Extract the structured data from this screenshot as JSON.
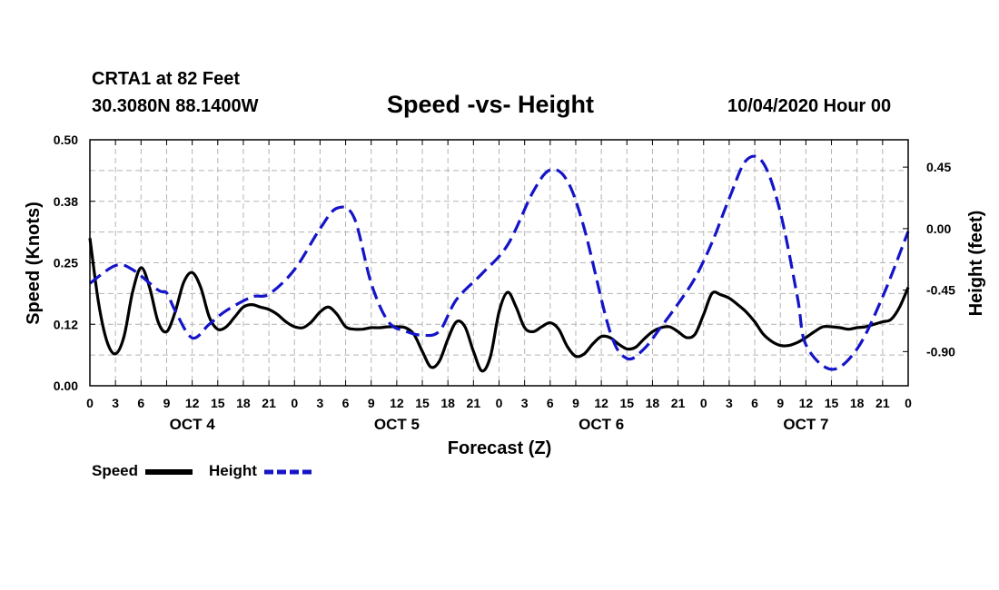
{
  "header": {
    "station": "CRTA1 at 82 Feet",
    "coords": "30.3080N 88.1400W",
    "title": "Speed -vs- Height",
    "runtime": "10/04/2020 Hour 00"
  },
  "legend": {
    "speed_label": "Speed",
    "height_label": "Height"
  },
  "colors": {
    "speed": "#000000",
    "height": "#1414c8",
    "grid": "#b4b4b4"
  },
  "chart_data": {
    "type": "line",
    "title": "Speed -vs- Height",
    "xlabel": "Forecast (Z)",
    "ylabel": "Speed (Knots)",
    "y2label": "Height (feet)",
    "grid": true,
    "xlim": [
      0,
      96
    ],
    "ylim": [
      0,
      0.5
    ],
    "y2lim": [
      -1.15,
      0.65
    ],
    "x_ticks": [
      0,
      3,
      6,
      9,
      12,
      15,
      18,
      21,
      24,
      27,
      30,
      33,
      36,
      39,
      42,
      45,
      48,
      51,
      54,
      57,
      60,
      63,
      66,
      69,
      72,
      75,
      78,
      81,
      84,
      87,
      90,
      93,
      96
    ],
    "x_tick_labels": [
      "0",
      "3",
      "6",
      "9",
      "12",
      "15",
      "18",
      "21",
      "0",
      "3",
      "6",
      "9",
      "12",
      "15",
      "18",
      "21",
      "0",
      "3",
      "6",
      "9",
      "12",
      "15",
      "18",
      "21",
      "0",
      "3",
      "6",
      "9",
      "12",
      "15",
      "18",
      "21",
      "0"
    ],
    "day_labels": [
      {
        "x": 12,
        "label": "OCT 4"
      },
      {
        "x": 36,
        "label": "OCT 5"
      },
      {
        "x": 60,
        "label": "OCT 6"
      },
      {
        "x": 84,
        "label": "OCT 7"
      }
    ],
    "y_ticks": [
      0.0,
      0.125,
      0.25,
      0.375,
      0.5
    ],
    "y_tick_labels": [
      "0.00",
      "0.12",
      "0.25",
      "0.38",
      "0.50"
    ],
    "y2_ticks": [
      0.45,
      0.0,
      -0.45,
      -0.9
    ],
    "y2_tick_labels": [
      "0.45",
      "0.00",
      "-0.45",
      "-0.90"
    ],
    "series": [
      {
        "name": "Speed",
        "axis": "left",
        "style": "solid",
        "x": [
          0,
          1,
          2,
          3,
          4,
          5,
          6,
          7,
          8,
          9,
          10,
          11,
          12,
          13,
          14,
          15,
          16,
          17,
          18,
          19,
          20,
          21,
          22,
          23,
          24,
          25,
          26,
          27,
          28,
          29,
          30,
          31,
          32,
          33,
          34,
          35,
          36,
          37,
          38,
          39,
          40,
          41,
          42,
          43,
          44,
          45,
          46,
          47,
          48,
          49,
          50,
          51,
          52,
          53,
          54,
          55,
          56,
          57,
          58,
          59,
          60,
          61,
          62,
          63,
          64,
          65,
          66,
          67,
          68,
          69,
          70,
          71,
          72,
          73,
          74,
          75,
          76,
          77,
          78,
          79,
          80,
          81,
          82,
          83,
          84,
          85,
          86,
          87,
          88,
          89,
          90,
          91,
          92,
          93,
          94,
          95,
          96
        ],
        "values": [
          0.3,
          0.17,
          0.09,
          0.065,
          0.1,
          0.19,
          0.24,
          0.2,
          0.13,
          0.11,
          0.15,
          0.21,
          0.23,
          0.2,
          0.14,
          0.115,
          0.12,
          0.14,
          0.16,
          0.165,
          0.16,
          0.155,
          0.145,
          0.13,
          0.12,
          0.118,
          0.13,
          0.15,
          0.16,
          0.145,
          0.12,
          0.115,
          0.115,
          0.118,
          0.118,
          0.12,
          0.12,
          0.118,
          0.105,
          0.07,
          0.038,
          0.05,
          0.095,
          0.13,
          0.12,
          0.07,
          0.03,
          0.06,
          0.15,
          0.19,
          0.16,
          0.118,
          0.11,
          0.12,
          0.128,
          0.115,
          0.08,
          0.06,
          0.065,
          0.085,
          0.1,
          0.098,
          0.085,
          0.075,
          0.078,
          0.095,
          0.11,
          0.118,
          0.12,
          0.11,
          0.098,
          0.105,
          0.145,
          0.188,
          0.185,
          0.178,
          0.165,
          0.15,
          0.13,
          0.105,
          0.09,
          0.082,
          0.082,
          0.088,
          0.098,
          0.11,
          0.12,
          0.12,
          0.118,
          0.115,
          0.118,
          0.12,
          0.125,
          0.13,
          0.135,
          0.16,
          0.2
        ]
      },
      {
        "name": "Height",
        "axis": "right",
        "style": "dashed",
        "x": [
          0,
          3,
          5,
          8,
          9,
          10,
          12,
          14,
          16,
          19,
          21,
          24,
          27,
          29,
          31,
          33,
          35,
          37,
          39,
          41,
          43,
          46,
          49,
          52,
          54,
          56,
          58,
          61,
          63,
          65,
          67,
          69,
          71,
          73,
          75,
          77,
          79,
          81,
          83,
          84,
          87,
          90,
          93,
          96
        ],
        "values": [
          -0.4,
          -0.27,
          -0.3,
          -0.45,
          -0.47,
          -0.6,
          -0.8,
          -0.7,
          -0.6,
          -0.5,
          -0.48,
          -0.3,
          0.0,
          0.15,
          0.08,
          -0.4,
          -0.68,
          -0.75,
          -0.78,
          -0.75,
          -0.52,
          -0.33,
          -0.12,
          0.27,
          0.43,
          0.35,
          0.0,
          -0.75,
          -0.95,
          -0.88,
          -0.72,
          -0.55,
          -0.36,
          -0.1,
          0.22,
          0.5,
          0.48,
          0.12,
          -0.5,
          -0.85,
          -1.03,
          -0.88,
          -0.5,
          -0.02
        ]
      }
    ]
  }
}
